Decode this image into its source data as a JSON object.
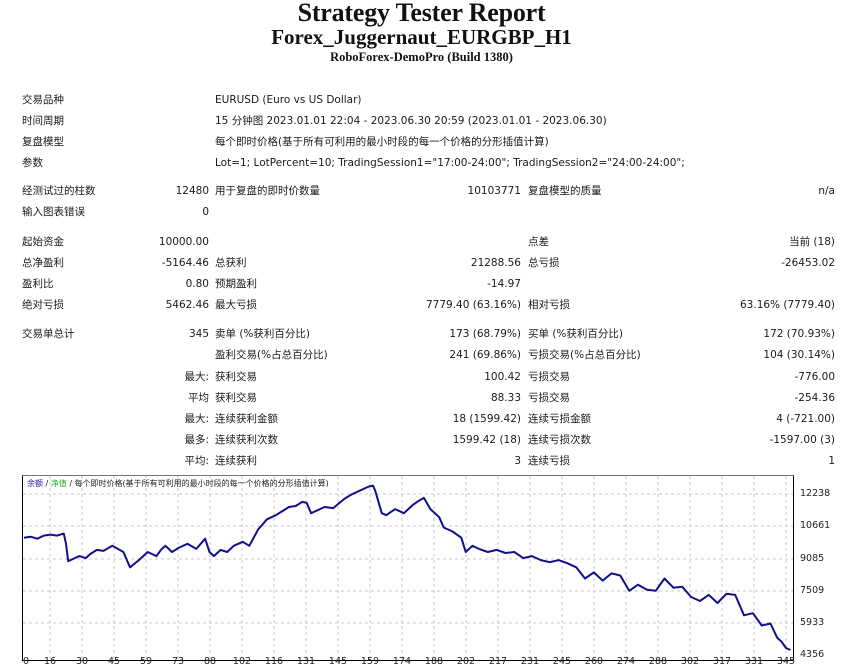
{
  "header": {
    "title": "Strategy Tester Report",
    "expert": "Forex_Juggernaut_EURGBP_H1",
    "server": "RoboForex-DemoPro (Build 1380)"
  },
  "settings": [
    {
      "label": "交易品种",
      "value": "EURUSD (Euro vs US Dollar)"
    },
    {
      "label": "时间周期",
      "value": "15 分钟图 2023.01.01 22:04 - 2023.06.30 20:59 (2023.01.01 - 2023.06.30)"
    },
    {
      "label": "复盘模型",
      "value": "每个即时价格(基于所有可利用的最小时段的每一个价格的分形插值计算)"
    },
    {
      "label": "参数",
      "value": "Lot=1; LotPercent=10; TradingSession1=\"17:00-24:00\"; TradingSession2=\"24:00-24:00\";"
    }
  ],
  "modeling": {
    "bars_label": "经测试过的柱数",
    "bars_value": "12480",
    "ticks_label": "用于复盘的即时价数量",
    "ticks_value": "10103771",
    "quality_label": "复盘模型的质量",
    "quality_value": "n/a",
    "errors_label": "输入图表错误",
    "errors_value": "0"
  },
  "results": {
    "initial_deposit_label": "起始资金",
    "initial_deposit": "10000.00",
    "spread_label": "点差",
    "spread": "当前 (18)",
    "net_profit_label": "总净盈利",
    "net_profit": "-5164.46",
    "gross_profit_label": "总获利",
    "gross_profit": "21288.56",
    "gross_loss_label": "总亏损",
    "gross_loss": "-26453.02",
    "profit_factor_label": "盈利比",
    "profit_factor": "0.80",
    "expected_payoff_label": "预期盈利",
    "expected_payoff": "-14.97",
    "abs_drawdown_label": "绝对亏损",
    "abs_drawdown": "5462.46",
    "max_drawdown_label": "最大亏损",
    "max_drawdown": "7779.40 (63.16%)",
    "rel_drawdown_label": "相对亏损",
    "rel_drawdown": "63.16% (7779.40)"
  },
  "trades": {
    "total_label": "交易单总计",
    "total": "345",
    "short_label": "卖单 (%获利百分比)",
    "short": "173 (68.79%)",
    "long_label": "买单 (%获利百分比)",
    "long": "172 (70.93%)",
    "profit_trades_label": "盈利交易(%占总百分比)",
    "profit_trades": "241 (69.86%)",
    "loss_trades_label": "亏损交易(%占总百分比)",
    "loss_trades": "104 (30.14%)",
    "rows": [
      {
        "prefix": "最大:",
        "left_label": "获利交易",
        "left_value": "100.42",
        "right_label": "亏损交易",
        "right_value": "-776.00"
      },
      {
        "prefix": "平均",
        "left_label": "获利交易",
        "left_value": "88.33",
        "right_label": "亏损交易",
        "right_value": "-254.36"
      },
      {
        "prefix": "最大:",
        "left_label": "连续获利金额",
        "left_value": "18 (1599.42)",
        "right_label": "连续亏损金额",
        "right_value": "4 (-721.00)"
      },
      {
        "prefix": "最多:",
        "left_label": "连续获利次数",
        "left_value": "1599.42 (18)",
        "right_label": "连续亏损次数",
        "right_value": "-1597.00 (3)"
      },
      {
        "prefix": "平均:",
        "left_label": "连续获利",
        "left_value": "3",
        "right_label": "连续亏损",
        "right_value": "1"
      }
    ]
  },
  "chart_header": {
    "balance": "余额",
    "sep1": " / ",
    "equity": "净值",
    "sep2": " / ",
    "model": "每个即时价格(基于所有可利用的最小时段的每一个价格的分形插值计算)"
  },
  "colors": {
    "line": "#10108c",
    "balance_label": "#1a1aa0",
    "equity_label": "#22aa22",
    "grid": "#c8c8c8"
  },
  "chart_data": {
    "type": "line",
    "title": "余额 / 净值 / 每个即时价格(基于所有可利用的最小时段的每一个价格的分形插值计算)",
    "xlabel": "",
    "ylabel": "",
    "x_ticks": [
      0,
      16,
      30,
      45,
      59,
      73,
      88,
      102,
      116,
      131,
      145,
      159,
      174,
      188,
      202,
      217,
      231,
      245,
      260,
      274,
      288,
      302,
      317,
      331,
      345
    ],
    "y_ticks": [
      12238,
      10661,
      9085,
      7509,
      5933,
      4356
    ],
    "xlim": [
      0,
      348
    ],
    "ylim": [
      4356,
      12900
    ],
    "grid": true,
    "legend": [
      "余额",
      "净值"
    ],
    "series": [
      {
        "name": "余额",
        "x": [
          0,
          3,
          6,
          9,
          12,
          15,
          18,
          19,
          20,
          22,
          25,
          28,
          30,
          33,
          36,
          40,
          45,
          48,
          52,
          56,
          60,
          62,
          64,
          66,
          67,
          70,
          74,
          78,
          82,
          84,
          86,
          89,
          92,
          95,
          99,
          102,
          106,
          110,
          114,
          117,
          120,
          123,
          126,
          128,
          130,
          134,
          136,
          140,
          145,
          148,
          152,
          156,
          158,
          159,
          162,
          164,
          168,
          172,
          174,
          176,
          178,
          181,
          184,
          185,
          188,
          190,
          194,
          198,
          200,
          203,
          206,
          210,
          214,
          218,
          222,
          226,
          230,
          234,
          238,
          242,
          246,
          250,
          254,
          258,
          262,
          266,
          270,
          274,
          278,
          282,
          286,
          290,
          294,
          298,
          302,
          306,
          310,
          314,
          318,
          322,
          326,
          330,
          334,
          338,
          341,
          343,
          345,
          347
        ],
        "y": [
          10100,
          10150,
          10050,
          10200,
          10250,
          10200,
          10300,
          9800,
          8950,
          9050,
          9200,
          9100,
          9300,
          9500,
          9450,
          9700,
          9400,
          8650,
          9000,
          9400,
          9200,
          9500,
          9700,
          9500,
          9400,
          9600,
          9800,
          9550,
          10050,
          9400,
          9200,
          9500,
          9400,
          9700,
          9900,
          9700,
          10500,
          11000,
          11200,
          11400,
          11600,
          11650,
          11850,
          11800,
          11300,
          11500,
          11600,
          11550,
          12000,
          12200,
          12400,
          12600,
          12650,
          12400,
          11300,
          11200,
          11500,
          11300,
          11500,
          11700,
          11850,
          12050,
          11500,
          11400,
          11100,
          10600,
          10400,
          10100,
          9400,
          9700,
          9550,
          9400,
          9500,
          9350,
          9400,
          9100,
          9200,
          9000,
          8900,
          9000,
          8850,
          8650,
          8100,
          8400,
          8000,
          8350,
          8250,
          7500,
          7800,
          7550,
          7500,
          8100,
          7650,
          7700,
          7200,
          7000,
          7300,
          6900,
          7350,
          7300,
          6300,
          6400,
          5800,
          5900,
          5200,
          5000,
          4700,
          4600
        ]
      }
    ]
  }
}
